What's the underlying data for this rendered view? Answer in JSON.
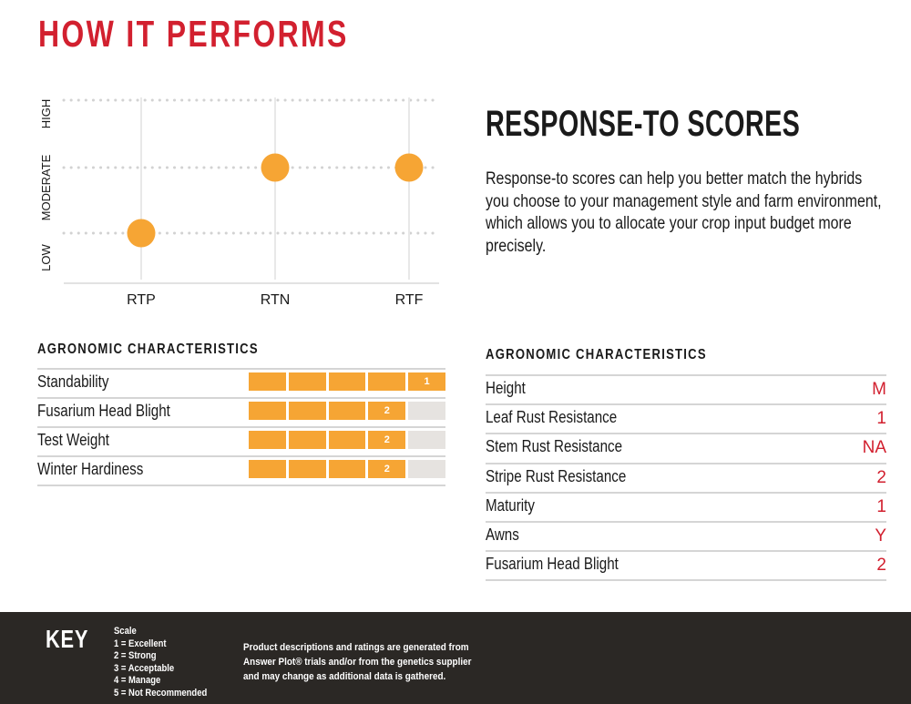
{
  "page": {
    "title": "HOW IT PERFORMS",
    "accent_color": "#d2202f",
    "bar_color": "#f6a534",
    "empty_bar_color": "#e6e3e0"
  },
  "chart_data": {
    "type": "scatter",
    "title": "",
    "xlabel": "",
    "ylabel": "",
    "categories": [
      "RTP",
      "RTN",
      "RTF"
    ],
    "y_levels": [
      "LOW",
      "MODERATE",
      "HIGH"
    ],
    "values": [
      "LOW",
      "MODERATE",
      "MODERATE"
    ],
    "grid": true,
    "point_color": "#f6a534"
  },
  "response_to": {
    "heading": "RESPONSE-TO SCORES",
    "description": "Response-to scores can help you better match the hybrids you choose to your management style and farm environment, which allows you to allocate your crop input budget more precisely."
  },
  "agronomic_left": {
    "heading": "AGRONOMIC CHARACTERISTICS",
    "scale_max": 5,
    "rows": [
      {
        "label": "Standability",
        "score": 1,
        "score_label": "1"
      },
      {
        "label": "Fusarium Head Blight",
        "score": 2,
        "score_label": "2"
      },
      {
        "label": "Test Weight",
        "score": 2,
        "score_label": "2"
      },
      {
        "label": "Winter Hardiness",
        "score": 2,
        "score_label": "2"
      }
    ]
  },
  "agronomic_right": {
    "heading": "AGRONOMIC CHARACTERISTICS",
    "rows": [
      {
        "label": "Height",
        "value": "M"
      },
      {
        "label": "Leaf Rust Resistance",
        "value": "1"
      },
      {
        "label": "Stem Rust Resistance",
        "value": "NA"
      },
      {
        "label": "Stripe Rust Resistance",
        "value": "2"
      },
      {
        "label": "Maturity",
        "value": "1"
      },
      {
        "label": "Awns",
        "value": "Y"
      },
      {
        "label": "Fusarium Head Blight",
        "value": "2"
      }
    ]
  },
  "key": {
    "title": "KEY",
    "scale_title": "Scale",
    "scale_items": [
      "1 = Excellent",
      "2 = Strong",
      "3 = Acceptable",
      "4 = Manage",
      "5 = Not Recommended"
    ],
    "disclaimer": "Product descriptions and ratings are generated from Answer Plot® trials and/or from the genetics supplier and may change as additional data is gathered."
  }
}
